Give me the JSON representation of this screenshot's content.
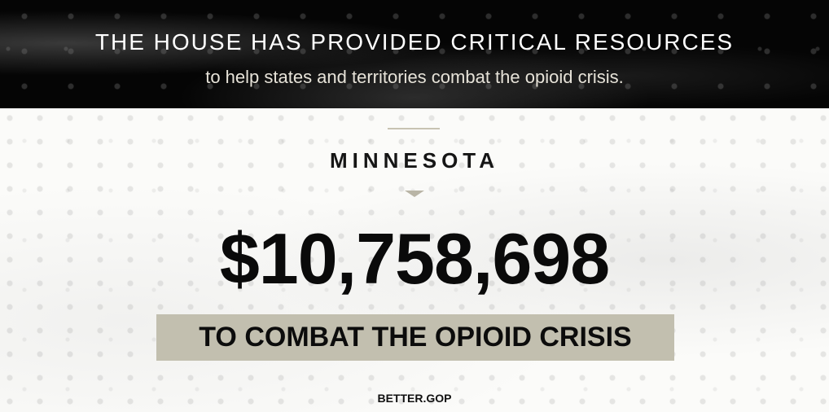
{
  "header": {
    "title": "THE HOUSE HAS PROVIDED CRITICAL RESOURCES",
    "subtitle": "to help states and territories combat the opioid crisis."
  },
  "main": {
    "state": "MINNESOTA",
    "amount": "$10,758,698",
    "banner": "TO COMBAT THE OPIOID CRISIS"
  },
  "footer": {
    "brand": "BETTER.GOP"
  },
  "colors": {
    "header_bg": "#050505",
    "banner_bg": "#c2bfaf",
    "accent": "#c8c3b2"
  }
}
